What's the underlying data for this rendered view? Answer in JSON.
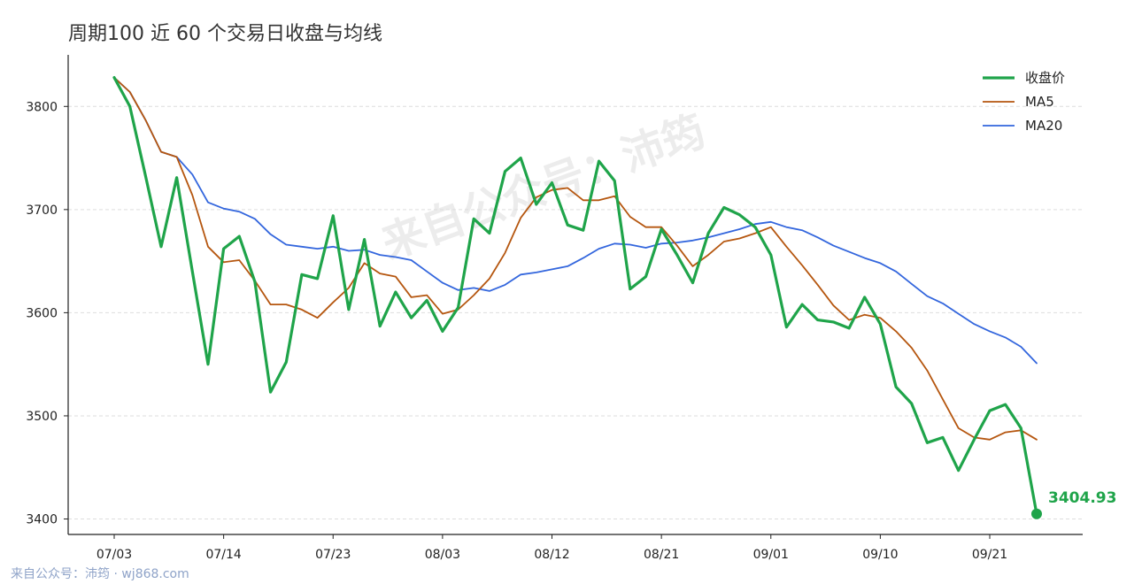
{
  "title": "周期100 近 60 个交易日收盘与均线",
  "watermark": "来自公众号：沛筠",
  "footer": "来自公众号：沛筠 · wj868.com",
  "colors": {
    "close": "#1fa44a",
    "ma5": "#b5560f",
    "ma20": "#3366dd",
    "grid": "#dddddd",
    "axis": "#222222"
  },
  "chart_data": {
    "type": "line",
    "title": "周期100 近 60 个交易日收盘与均线",
    "xlabel": "",
    "ylabel": "",
    "ylim": [
      3385,
      3850
    ],
    "y_ticks": [
      3400,
      3500,
      3600,
      3700,
      3800
    ],
    "x_tick_labels": [
      {
        "index": 0,
        "label": "07/03"
      },
      {
        "index": 7,
        "label": "07/14"
      },
      {
        "index": 14,
        "label": "07/23"
      },
      {
        "index": 21,
        "label": "08/03"
      },
      {
        "index": 28,
        "label": "08/12"
      },
      {
        "index": 35,
        "label": "08/21"
      },
      {
        "index": 42,
        "label": "09/01"
      },
      {
        "index": 49,
        "label": "09/10"
      },
      {
        "index": 56,
        "label": "09/21"
      }
    ],
    "grid": "horizontal",
    "legend_position": "top-right",
    "series": [
      {
        "name": "收盘价",
        "values": [
          3828,
          3800,
          3733,
          3664,
          3731,
          3640,
          3550,
          3662,
          3674,
          3630,
          3523,
          3552,
          3637,
          3633,
          3694,
          3603,
          3671,
          3587,
          3620,
          3595,
          3612,
          3582,
          3605,
          3691,
          3677,
          3737,
          3750,
          3705,
          3726,
          3685,
          3680,
          3747,
          3728,
          3623,
          3635,
          3681,
          3656,
          3629,
          3677,
          3702,
          3695,
          3683,
          3656,
          3586,
          3608,
          3593,
          3591,
          3585,
          3615,
          3589,
          3528,
          3512,
          3474,
          3479,
          3447,
          3477,
          3505,
          3511,
          3488,
          3404.93
        ]
      },
      {
        "name": "MA5",
        "values": [
          3828,
          3814,
          3787,
          3756,
          3751,
          3714,
          3664,
          3649,
          3651,
          3631,
          3608,
          3608,
          3603,
          3595,
          3610,
          3624,
          3648,
          3638,
          3635,
          3615,
          3617,
          3599,
          3603,
          3617,
          3633,
          3658,
          3692,
          3712,
          3719,
          3721,
          3709,
          3709,
          3713,
          3693,
          3683,
          3683,
          3665,
          3645,
          3656,
          3669,
          3672,
          3677,
          3683,
          3664,
          3646,
          3627,
          3607,
          3593,
          3598,
          3595,
          3582,
          3566,
          3544,
          3516,
          3488,
          3479,
          3477,
          3484,
          3486,
          3477
        ]
      },
      {
        "name": "MA20",
        "values": [
          3828,
          3814,
          3787,
          3756,
          3751,
          3734,
          3707,
          3701,
          3698,
          3691,
          3676,
          3666,
          3664,
          3662,
          3664,
          3660,
          3661,
          3656,
          3654,
          3651,
          3640,
          3629,
          3622,
          3624,
          3621,
          3627,
          3637,
          3639,
          3642,
          3645,
          3653,
          3662,
          3667,
          3666,
          3663,
          3667,
          3668,
          3670,
          3673,
          3677,
          3681,
          3686,
          3688,
          3683,
          3680,
          3673,
          3665,
          3659,
          3653,
          3648,
          3640,
          3628,
          3616,
          3609,
          3599,
          3589,
          3582,
          3576,
          3567,
          3551
        ]
      }
    ],
    "last_value_label": "3404.93"
  }
}
